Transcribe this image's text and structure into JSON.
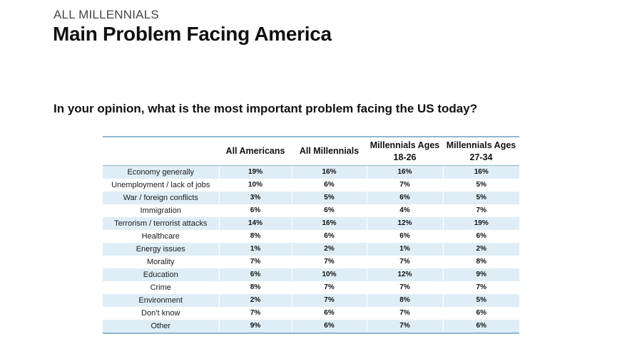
{
  "header": {
    "kicker": "ALL MILLENNIALS",
    "title": "Main Problem Facing America"
  },
  "question": "In your opinion, what is the most important problem facing the US today?",
  "table": {
    "columns": [
      "",
      "All Americans",
      "All Millennials",
      "Millennials Ages 18-26",
      "Millennials Ages 27-34"
    ],
    "rows": [
      [
        "Economy generally",
        "19%",
        "16%",
        "16%",
        "16%"
      ],
      [
        "Unemployment / lack of jobs",
        "10%",
        "6%",
        "7%",
        "5%"
      ],
      [
        "War / foreign conflicts",
        "3%",
        "5%",
        "6%",
        "5%"
      ],
      [
        "Immigration",
        "6%",
        "6%",
        "4%",
        "7%"
      ],
      [
        "Terrorism / terrorist attacks",
        "14%",
        "16%",
        "12%",
        "19%"
      ],
      [
        "Healthcare",
        "8%",
        "6%",
        "6%",
        "6%"
      ],
      [
        "Energy issues",
        "1%",
        "2%",
        "1%",
        "2%"
      ],
      [
        "Morality",
        "7%",
        "7%",
        "7%",
        "8%"
      ],
      [
        "Education",
        "6%",
        "10%",
        "12%",
        "9%"
      ],
      [
        "Crime",
        "8%",
        "7%",
        "7%",
        "7%"
      ],
      [
        "Environment",
        "2%",
        "7%",
        "8%",
        "5%"
      ],
      [
        "Don’t know",
        "7%",
        "6%",
        "7%",
        "6%"
      ],
      [
        "Other",
        "9%",
        "6%",
        "7%",
        "6%"
      ]
    ]
  },
  "colors": {
    "row_shade": "#dfeef6",
    "rule": "#8fb6cc"
  }
}
